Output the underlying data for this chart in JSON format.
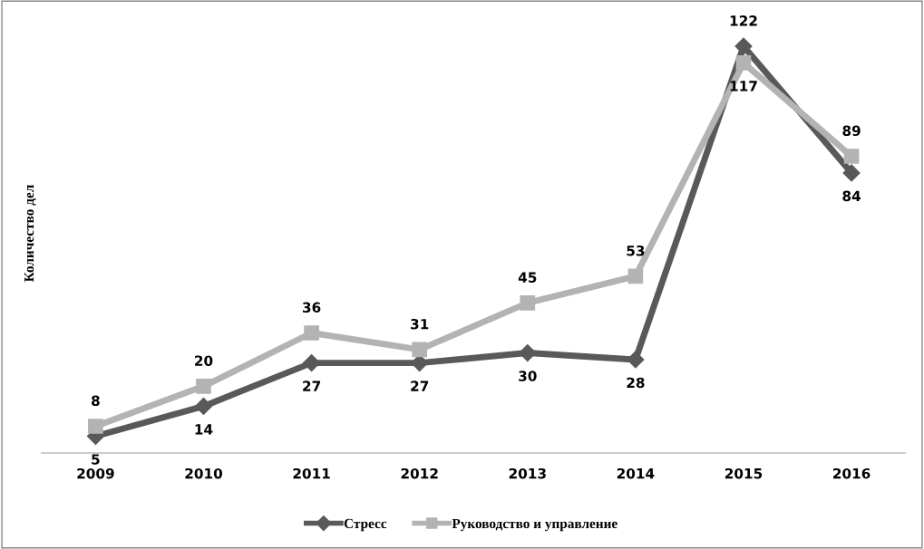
{
  "chart_data": {
    "type": "line",
    "ylabel": "Количество дел",
    "categories": [
      "2009",
      "2010",
      "2011",
      "2012",
      "2013",
      "2014",
      "2015",
      "2016"
    ],
    "series": [
      {
        "name": "Стресс",
        "color": "#595959",
        "marker": "diamond",
        "values": [
          5,
          14,
          27,
          27,
          30,
          28,
          122,
          84
        ]
      },
      {
        "name": "Руководство и управление",
        "color": "#b3b3b3",
        "marker": "square",
        "values": [
          8,
          20,
          36,
          31,
          45,
          53,
          117,
          89
        ]
      }
    ],
    "data_labels": true,
    "grid": false,
    "legend": "bottom",
    "line_style": "solid",
    "tick_labels": "x"
  }
}
